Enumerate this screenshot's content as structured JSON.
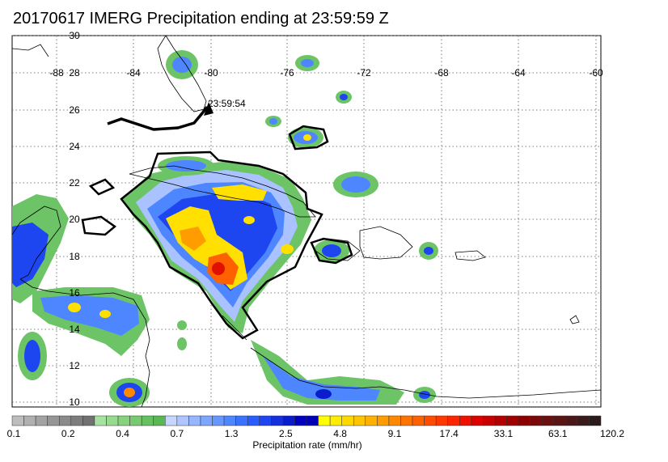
{
  "title": "20170617 IMERG Precipitation ending at 23:59:59 Z",
  "track_time_label": "23:59:54",
  "lon_labels": [
    "-88",
    "-84",
    "-80",
    "-76",
    "-72",
    "-68",
    "-64",
    "-60"
  ],
  "lat_labels": [
    "30",
    "28",
    "26",
    "24",
    "22",
    "20",
    "18",
    "16",
    "14",
    "12",
    "10"
  ],
  "colorbar": {
    "title": "Precipitation rate (mm/hr)",
    "tick_labels": [
      "0.1",
      "0.2",
      "0.4",
      "0.7",
      "1.3",
      "2.5",
      "4.8",
      "9.1",
      "17.4",
      "33.1",
      "63.1",
      "120.2"
    ],
    "colors": [
      "#bdbdbd",
      "#b0b0b0",
      "#a3a3a3",
      "#969696",
      "#8a8a8a",
      "#7d7d7d",
      "#717171",
      "#a7e3a0",
      "#97db8f",
      "#87d27f",
      "#77ca70",
      "#68c160",
      "#5ab852",
      "#c6d6ff",
      "#aec6ff",
      "#96b6ff",
      "#7ea6ff",
      "#6696ff",
      "#4e86ff",
      "#3a72ff",
      "#2a5cff",
      "#1e46f0",
      "#1430dc",
      "#0a1ccc",
      "#0000c0",
      "#0000b4",
      "#ffff00",
      "#ffec00",
      "#ffd800",
      "#ffc400",
      "#ffb000",
      "#ff9c00",
      "#ff8800",
      "#ff7400",
      "#ff6000",
      "#ff4c00",
      "#ff3800",
      "#ff2400",
      "#f01000",
      "#dc0000",
      "#c80000",
      "#b40000",
      "#a00000",
      "#8c0000",
      "#7a0a0a",
      "#6a1010",
      "#5a1414",
      "#4a1818",
      "#3a1a1a",
      "#2a1a1a"
    ]
  }
}
